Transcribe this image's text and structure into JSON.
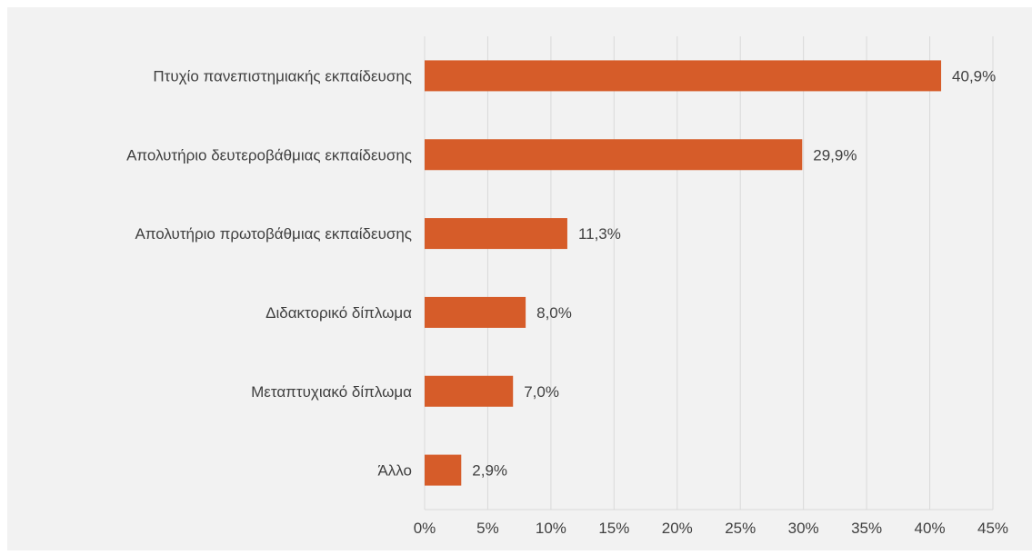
{
  "chart_data": {
    "type": "bar",
    "orientation": "horizontal",
    "categories": [
      "Πτυχίο πανεπιστημιακής εκπαίδευσης",
      "Απολυτήριο δευτεροβάθμιας εκπαίδευσης",
      "Απολυτήριο πρωτοβάθμιας εκπαίδευσης",
      "Διδακτορικό δίπλωμα",
      "Μεταπτυχιακό δίπλωμα",
      "Άλλο"
    ],
    "values": [
      40.9,
      29.9,
      11.3,
      8.0,
      7.0,
      2.9
    ],
    "data_labels": [
      "40,9%",
      "29,9%",
      "11,3%",
      "8,0%",
      "7,0%",
      "2,9%"
    ],
    "xlim": [
      0,
      45
    ],
    "x_ticks": [
      0,
      5,
      10,
      15,
      20,
      25,
      30,
      35,
      40,
      45
    ],
    "x_tick_labels": [
      "0%",
      "5%",
      "10%",
      "15%",
      "20%",
      "25%",
      "30%",
      "35%",
      "40%",
      "45%"
    ],
    "grid": "vertical",
    "legend": "none",
    "title": "",
    "xlabel": "",
    "ylabel": "",
    "colors": {
      "bar": "#d65c29",
      "grid": "#d9d9d9",
      "background": "#f2f2f2",
      "text": "#404040"
    }
  }
}
